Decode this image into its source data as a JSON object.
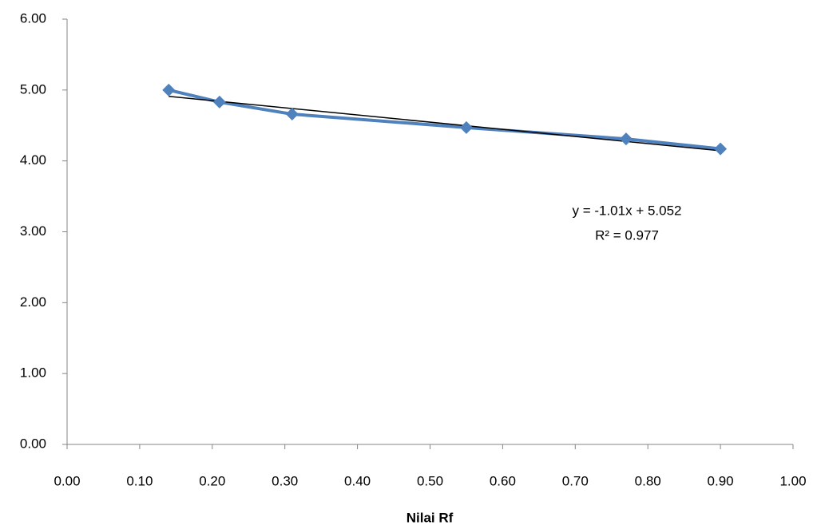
{
  "chart_data": {
    "type": "line",
    "x_label": "Nilai Rf",
    "x": [
      0.14,
      0.21,
      0.31,
      0.55,
      0.77,
      0.9
    ],
    "series": [
      {
        "color": "#4f81bd",
        "values": [
          5.0,
          4.83,
          4.66,
          4.47,
          4.31,
          4.17
        ]
      }
    ],
    "trendline": {
      "color": "#000000",
      "slope": -1.01,
      "intercept": 5.052,
      "equation": "y = -1.01x + 5.052",
      "r_squared": "R² = 0.977"
    },
    "xlim": [
      0,
      1
    ],
    "xticks": [
      {
        "value": 0,
        "label": "0.00"
      },
      {
        "value": 0.1,
        "label": "0.10"
      },
      {
        "value": 0.2,
        "label": "0.20"
      },
      {
        "value": 0.3,
        "label": "0.30"
      },
      {
        "value": 0.4,
        "label": "0.40"
      },
      {
        "value": 0.5,
        "label": "0.50"
      },
      {
        "value": 0.6,
        "label": "0.60"
      },
      {
        "value": 0.7,
        "label": "0.70"
      },
      {
        "value": 0.8,
        "label": "0.80"
      },
      {
        "value": 0.9,
        "label": "0.90"
      },
      {
        "value": 1,
        "label": "1.00"
      }
    ],
    "ylim": [
      0,
      6
    ],
    "yticks": [
      {
        "value": 0,
        "label": "0.00"
      },
      {
        "value": 1,
        "label": "1.00"
      },
      {
        "value": 2,
        "label": "2.00"
      },
      {
        "value": 3,
        "label": "3.00"
      },
      {
        "value": 4,
        "label": "4.00"
      },
      {
        "value": 5,
        "label": "5.00"
      },
      {
        "value": 6,
        "label": "6.00"
      }
    ],
    "grid": false
  }
}
